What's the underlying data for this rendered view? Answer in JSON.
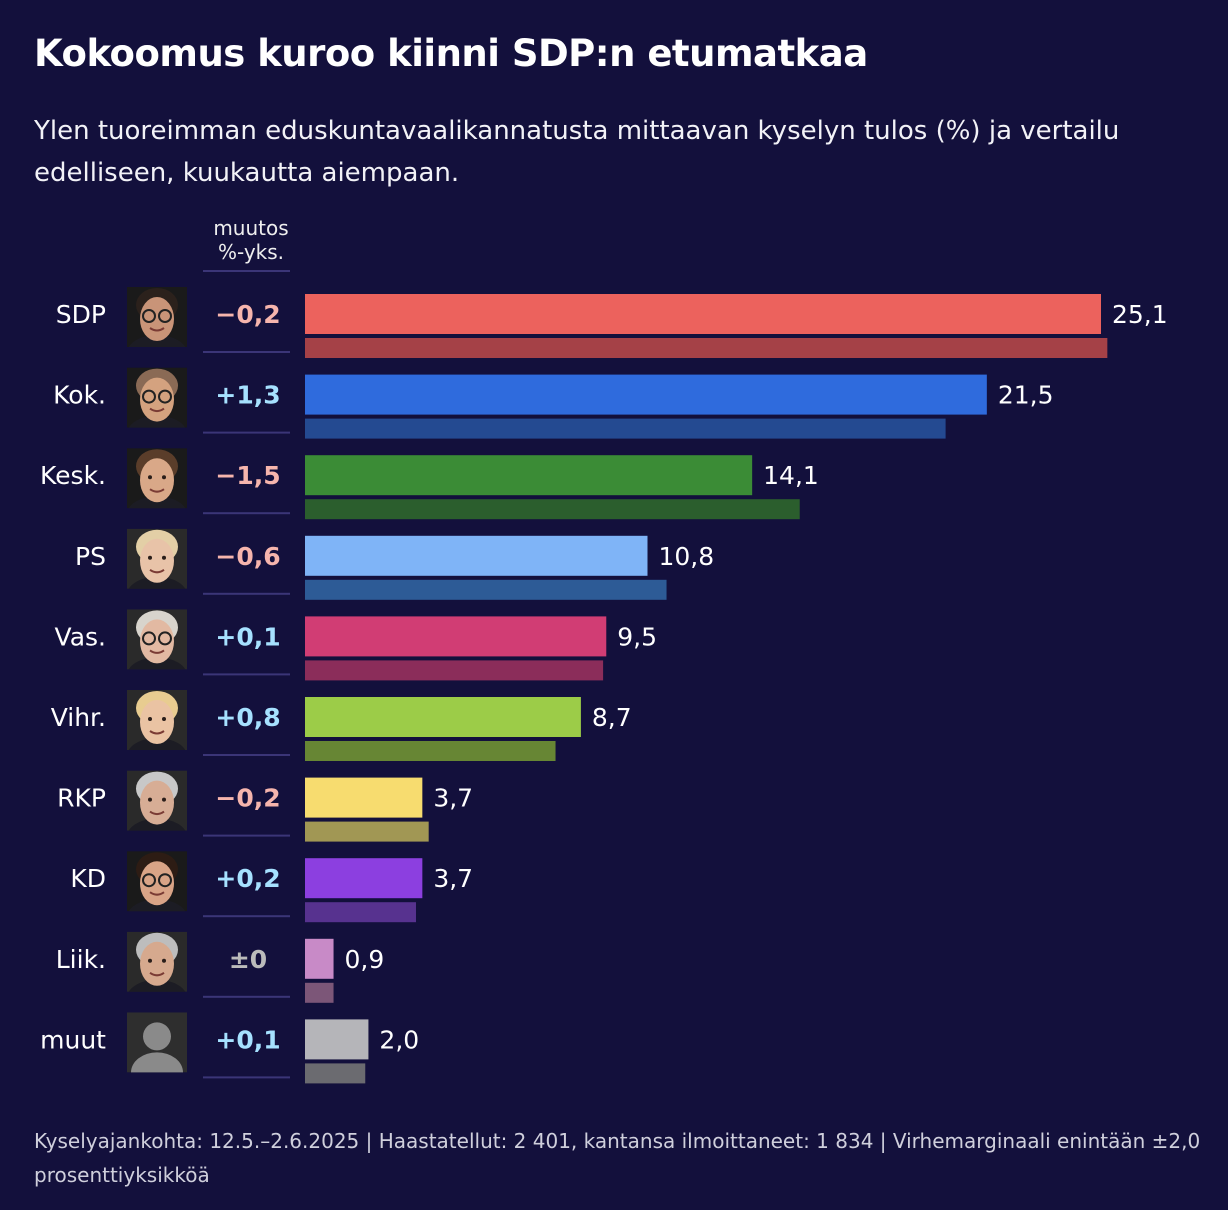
{
  "title": "Kokoomus kuroo kiinni SDP:n etumatkaa",
  "subtitle": "Ylen tuoreimman eduskuntavaalikannatusta mittaavan kyselyn tulos (%) ja vertailu edelliseen, kuukautta aiempaan.",
  "change_header": {
    "line1": "muutos",
    "line2": "%-yks."
  },
  "footer": "Kyselyajankohta: 12.5.–2.6.2025 | Haastatellut: 2 401, kantansa ilmoittaneet: 1 834 | Virhemarginaali enintään ±2,0 prosenttiyksikköä",
  "colors": {
    "background": "#13103c",
    "positive_change": "#a6e1ff",
    "negative_change": "#f6b5ad",
    "zero_change": "#bbbbbb"
  },
  "chart_data": {
    "type": "bar",
    "orientation": "horizontal",
    "value_decimal_separator": ",",
    "xlim": [
      0,
      25.1
    ],
    "categories": [
      "SDP",
      "Kok.",
      "Kesk.",
      "PS",
      "Vas.",
      "Vihr.",
      "RKP",
      "KD",
      "Liik.",
      "muut"
    ],
    "series": [
      {
        "values": [
          25.1,
          21.5,
          14.1,
          10.8,
          9.5,
          8.7,
          3.7,
          3.7,
          0.9,
          2.0
        ],
        "value_labels": [
          "25,1",
          "21,5",
          "14,1",
          "10,8",
          "9,5",
          "8,7",
          "3,7",
          "3,7",
          "0,9",
          "2,0"
        ],
        "colors": [
          "#ec625d",
          "#2f6bdd",
          "#3b8c36",
          "#7fb4f7",
          "#d13d74",
          "#9ccc48",
          "#f7dc6f",
          "#8c3fe0",
          "#c88ac7",
          "#b5b5b9"
        ]
      },
      {
        "values": [
          25.3,
          20.2,
          15.6,
          11.4,
          9.4,
          7.9,
          3.9,
          3.5,
          0.9,
          1.9
        ],
        "colors": [
          "#a54147",
          "#244a91",
          "#2b5e2d",
          "#2d5b96",
          "#8b2d5a",
          "#678634",
          "#a19754",
          "#57328f",
          "#7c5678",
          "#6b6b70"
        ]
      }
    ],
    "changes": [
      {
        "text": "−0,2",
        "sign": "negative"
      },
      {
        "text": "+1,3",
        "sign": "positive"
      },
      {
        "text": "−1,5",
        "sign": "negative"
      },
      {
        "text": "−0,6",
        "sign": "negative"
      },
      {
        "text": "+0,1",
        "sign": "positive"
      },
      {
        "text": "+0,8",
        "sign": "positive"
      },
      {
        "text": "−0,2",
        "sign": "negative"
      },
      {
        "text": "+0,2",
        "sign": "positive"
      },
      {
        "text": "±0",
        "sign": "zero"
      },
      {
        "text": "+0,1",
        "sign": "positive"
      }
    ],
    "portraits": [
      {
        "icon": "portrait-man-glasses-dark-hair",
        "skin": "#c99478",
        "hair": "#2b211c",
        "glasses": true,
        "bg": "#1a1a1a"
      },
      {
        "icon": "portrait-man-glasses-bald",
        "skin": "#d4a27f",
        "hair": "#8a6a55",
        "glasses": true,
        "bg": "#1a1a1a"
      },
      {
        "icon": "portrait-man-short-hair",
        "skin": "#d9a888",
        "hair": "#5a3d2a",
        "glasses": false,
        "bg": "#1a1a1a"
      },
      {
        "icon": "portrait-woman-blonde",
        "skin": "#e8c3a8",
        "hair": "#e3cfa6",
        "glasses": false,
        "bg": "#2a2a2a"
      },
      {
        "icon": "portrait-woman-grey-hair-glasses",
        "skin": "#e2b9a2",
        "hair": "#d8d4cc",
        "glasses": true,
        "bg": "#2a2a2a"
      },
      {
        "icon": "portrait-woman-blonde-long",
        "skin": "#eac3a3",
        "hair": "#e8cc90",
        "glasses": false,
        "bg": "#2a2a2a"
      },
      {
        "icon": "portrait-man-grey-hair",
        "skin": "#d7ad95",
        "hair": "#c8c8c8",
        "glasses": false,
        "bg": "#2a2a2a"
      },
      {
        "icon": "portrait-woman-dark-hair-glasses",
        "skin": "#d9a487",
        "hair": "#2d1c14",
        "glasses": true,
        "bg": "#1a1a1a"
      },
      {
        "icon": "portrait-man-grey-smiling",
        "skin": "#d6a98e",
        "hair": "#bdbdbd",
        "glasses": false,
        "bg": "#2a2a2a"
      },
      {
        "icon": "portrait-placeholder-silhouette",
        "skin": "#8a8a8a",
        "hair": "#8a8a8a",
        "glasses": false,
        "bg": "#2e2e2e",
        "placeholder": true
      }
    ]
  }
}
